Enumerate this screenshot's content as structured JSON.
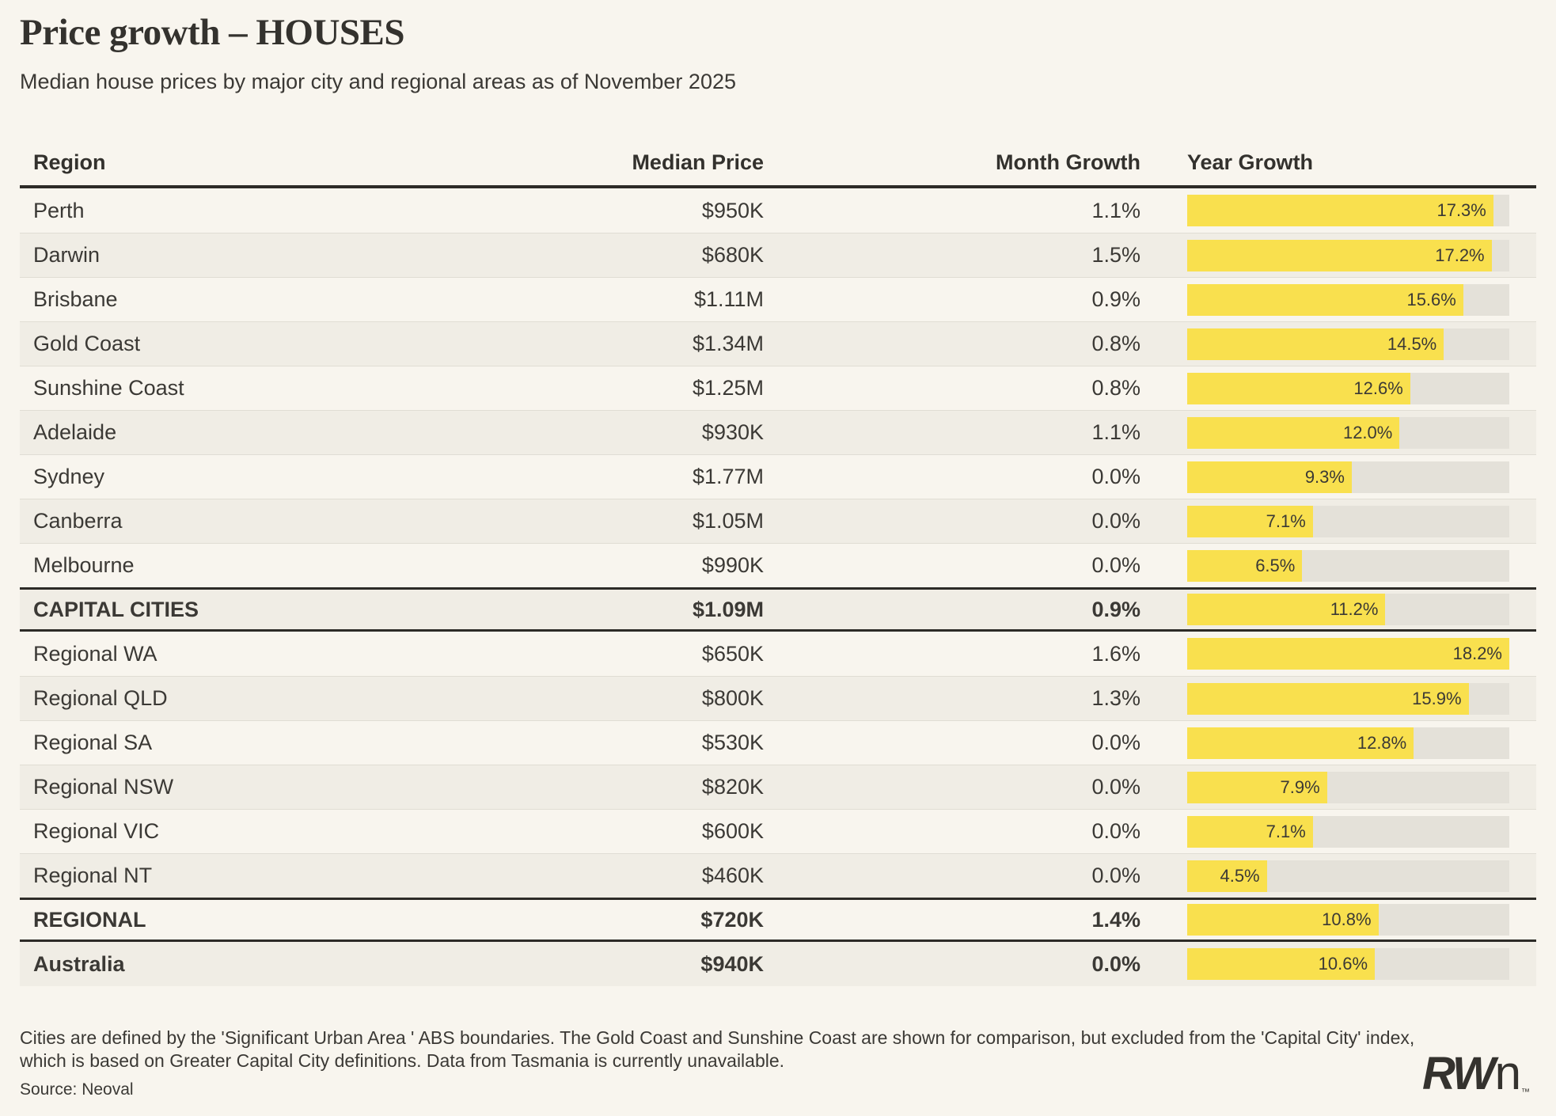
{
  "header": {
    "title": "Price growth – HOUSES",
    "subtitle": "Median house prices by major city and regional areas as of November 2025"
  },
  "chart_data": {
    "type": "table",
    "title": "Price growth – HOUSES",
    "subtitle": "Median house prices by major city and regional areas as of November 2025",
    "columns": [
      "Region",
      "Median Price",
      "Month Growth",
      "Year Growth"
    ],
    "bar_column": "Year Growth",
    "bar_scale_max": 18.2,
    "rows": [
      {
        "region": "Perth",
        "median_price": "$950K",
        "month_growth": "1.1%",
        "year_growth": 17.3,
        "summary": false
      },
      {
        "region": "Darwin",
        "median_price": "$680K",
        "month_growth": "1.5%",
        "year_growth": 17.2,
        "summary": false
      },
      {
        "region": "Brisbane",
        "median_price": "$1.11M",
        "month_growth": "0.9%",
        "year_growth": 15.6,
        "summary": false
      },
      {
        "region": "Gold Coast",
        "median_price": "$1.34M",
        "month_growth": "0.8%",
        "year_growth": 14.5,
        "summary": false
      },
      {
        "region": "Sunshine Coast",
        "median_price": "$1.25M",
        "month_growth": "0.8%",
        "year_growth": 12.6,
        "summary": false
      },
      {
        "region": "Adelaide",
        "median_price": "$930K",
        "month_growth": "1.1%",
        "year_growth": 12.0,
        "summary": false
      },
      {
        "region": "Sydney",
        "median_price": "$1.77M",
        "month_growth": "0.0%",
        "year_growth": 9.3,
        "summary": false
      },
      {
        "region": "Canberra",
        "median_price": "$1.05M",
        "month_growth": "0.0%",
        "year_growth": 7.1,
        "summary": false
      },
      {
        "region": "Melbourne",
        "median_price": "$990K",
        "month_growth": "0.0%",
        "year_growth": 6.5,
        "summary": false
      },
      {
        "region": "CAPITAL CITIES",
        "median_price": "$1.09M",
        "month_growth": "0.9%",
        "year_growth": 11.2,
        "summary": true
      },
      {
        "region": "Regional WA",
        "median_price": "$650K",
        "month_growth": "1.6%",
        "year_growth": 18.2,
        "summary": false
      },
      {
        "region": "Regional QLD",
        "median_price": "$800K",
        "month_growth": "1.3%",
        "year_growth": 15.9,
        "summary": false
      },
      {
        "region": "Regional SA",
        "median_price": "$530K",
        "month_growth": "0.0%",
        "year_growth": 12.8,
        "summary": false
      },
      {
        "region": "Regional NSW",
        "median_price": "$820K",
        "month_growth": "0.0%",
        "year_growth": 7.9,
        "summary": false
      },
      {
        "region": "Regional VIC",
        "median_price": "$600K",
        "month_growth": "0.0%",
        "year_growth": 7.1,
        "summary": false
      },
      {
        "region": "Regional NT",
        "median_price": "$460K",
        "month_growth": "0.0%",
        "year_growth": 4.5,
        "summary": false
      },
      {
        "region": "REGIONAL",
        "median_price": "$720K",
        "month_growth": "1.4%",
        "year_growth": 10.8,
        "summary": true
      },
      {
        "region": "Australia",
        "median_price": "$940K",
        "month_growth": "0.0%",
        "year_growth": 10.6,
        "summary": true
      }
    ]
  },
  "colors": {
    "background": "#F8F5EE",
    "row_alt": "#F0EDE5",
    "bar_fill": "#F9E04E",
    "bar_track": "#E4E1D9",
    "text": "#3B3935",
    "rule_strong": "#2D2B27",
    "rule_thin": "#E0DDD4"
  },
  "footer": {
    "note": "Cities are defined by the 'Significant Urban Area ' ABS boundaries. The Gold Coast and Sunshine Coast are shown for comparison, but excluded from the 'Capital City' index, which is based on Greater Capital City definitions. Data from Tasmania is currently unavailable.",
    "source": "Source: Neoval",
    "logo": {
      "rw": "RW",
      "n": "n",
      "tm": "™"
    }
  }
}
